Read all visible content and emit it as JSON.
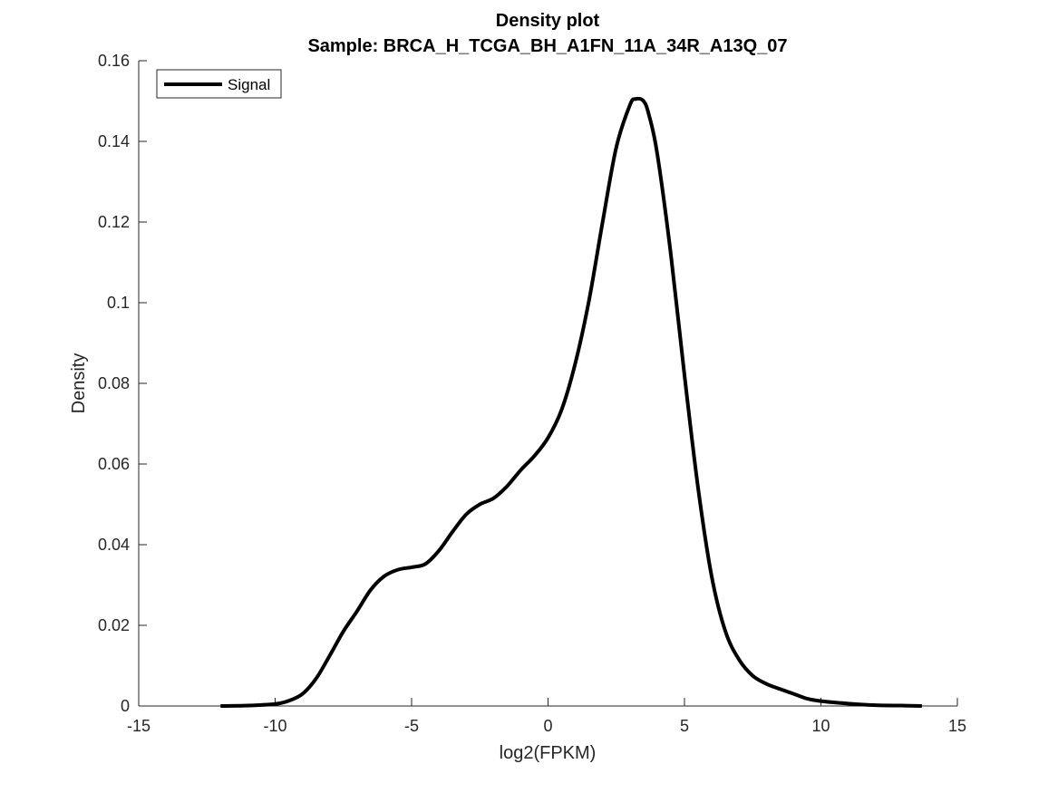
{
  "chart_data": {
    "type": "line",
    "title": "Density plot",
    "subtitle": "Sample: BRCA_H_TCGA_BH_A1FN_11A_34R_A13Q_07",
    "xlabel": "log2(FPKM)",
    "ylabel": "Density",
    "xlim": [
      -15,
      15
    ],
    "ylim": [
      0,
      0.16
    ],
    "xticks": [
      -15,
      -10,
      -5,
      0,
      5,
      10,
      15
    ],
    "yticks": [
      0,
      0.02,
      0.04,
      0.06,
      0.08,
      0.1,
      0.12,
      0.14,
      0.16
    ],
    "xtick_labels": [
      "-15",
      "-10",
      "-5",
      "0",
      "5",
      "10",
      "15"
    ],
    "ytick_labels": [
      "0",
      "0.02",
      "0.04",
      "0.06",
      "0.08",
      "0.1",
      "0.12",
      "0.14",
      "0.16"
    ],
    "grid": false,
    "legend": {
      "position": "top-left",
      "entries": [
        "Signal"
      ]
    },
    "series": [
      {
        "name": "Signal",
        "color": "#000000",
        "x": [
          -12,
          -11,
          -10,
          -9.5,
          -9,
          -8.5,
          -8,
          -7.5,
          -7,
          -6.5,
          -6,
          -5.5,
          -5,
          -4.5,
          -4,
          -3.5,
          -3,
          -2.5,
          -2,
          -1.5,
          -1,
          -0.5,
          0,
          0.5,
          1,
          1.5,
          2,
          2.5,
          3,
          3.2,
          3.5,
          3.7,
          4,
          4.5,
          5,
          5.5,
          6,
          6.5,
          7,
          7.5,
          8,
          8.5,
          9,
          9.5,
          10,
          11,
          12,
          13,
          13.7
        ],
        "values": [
          0,
          0.0001,
          0.0005,
          0.0013,
          0.003,
          0.0068,
          0.0125,
          0.0185,
          0.0235,
          0.0288,
          0.0322,
          0.0338,
          0.0344,
          0.0352,
          0.0385,
          0.0432,
          0.0475,
          0.05,
          0.0515,
          0.0545,
          0.0585,
          0.062,
          0.0665,
          0.0735,
          0.085,
          0.1005,
          0.12,
          0.1385,
          0.149,
          0.1505,
          0.15,
          0.1465,
          0.137,
          0.112,
          0.082,
          0.054,
          0.032,
          0.0185,
          0.0115,
          0.0075,
          0.0055,
          0.0042,
          0.003,
          0.0018,
          0.0012,
          0.0006,
          0.0002,
          0.0001,
          0
        ]
      }
    ]
  }
}
